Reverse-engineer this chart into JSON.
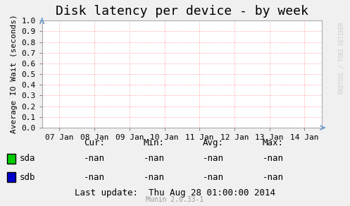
{
  "title": "Disk latency per device - by week",
  "ylabel": "Average IO Wait (seconds)",
  "background_color": "#f0f0f0",
  "plot_bg_color": "#ffffff",
  "grid_color": "#ff9999",
  "x_tick_labels": [
    "07 Jan",
    "08 Jan",
    "09 Jan",
    "10 Jan",
    "11 Jan",
    "12 Jan",
    "13 Jan",
    "14 Jan"
  ],
  "x_tick_positions": [
    0,
    1,
    2,
    3,
    4,
    5,
    6,
    7
  ],
  "ylim": [
    0.0,
    1.0
  ],
  "yticks": [
    0.0,
    0.1,
    0.2,
    0.3,
    0.4,
    0.5,
    0.6,
    0.7,
    0.8,
    0.9,
    1.0
  ],
  "legend_entries": [
    {
      "label": "sda",
      "color": "#00cc00"
    },
    {
      "label": "sdb",
      "color": "#0000cc"
    }
  ],
  "table_headers": [
    "Cur:",
    "Min:",
    "Avg:",
    "Max:"
  ],
  "table_data": [
    [
      "-nan",
      "-nan",
      "-nan",
      "-nan"
    ],
    [
      "-nan",
      "-nan",
      "-nan",
      "-nan"
    ]
  ],
  "last_update": "Last update:  Thu Aug 28 01:00:00 2014",
  "munin_version": "Munin 2.0.33-1",
  "watermark": "RRDTOOL / TOBI OETIKER",
  "title_fontsize": 13,
  "axis_label_fontsize": 8,
  "tick_fontsize": 8,
  "legend_fontsize": 9,
  "table_fontsize": 9
}
